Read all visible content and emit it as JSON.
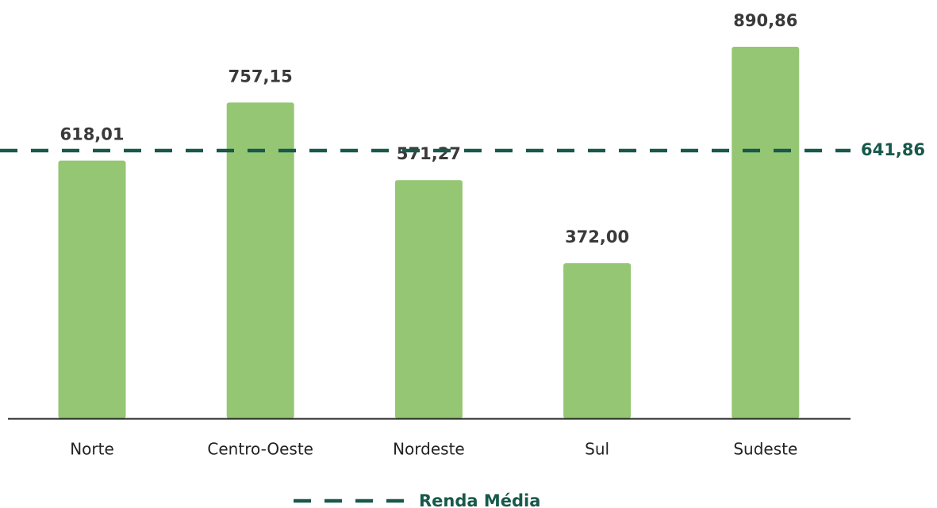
{
  "chart_data": {
    "type": "bar",
    "categories": [
      "Norte",
      "Centro-Oeste",
      "Nordeste",
      "Sul",
      "Sudeste"
    ],
    "values": [
      618.01,
      757.15,
      571.27,
      372.0,
      890.86
    ],
    "value_labels": [
      "618,01",
      "757,15",
      "571,27",
      "372,00",
      "890,86"
    ],
    "color": "#95c674",
    "ylim": [
      0,
      1000
    ],
    "reference_line": {
      "name": "Renda Média",
      "value": 641.86,
      "label": "641,86",
      "color": "#17594a"
    }
  }
}
